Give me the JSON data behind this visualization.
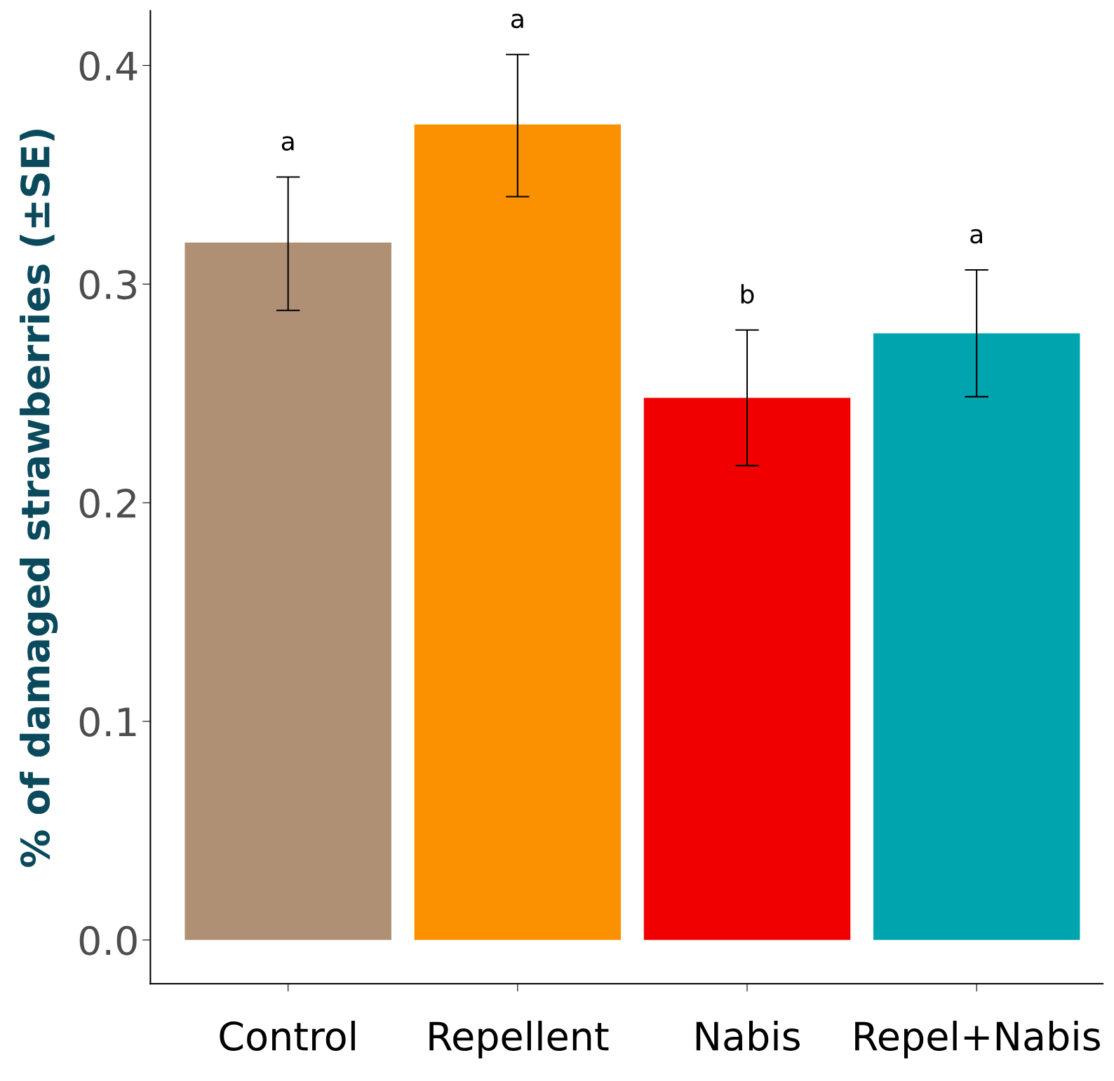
{
  "chart_data": {
    "type": "bar",
    "ylabel": "% of damaged strawberries (±SE)",
    "categories": [
      "Control",
      "Repellent",
      "Nabis",
      "Repel+Nabis"
    ],
    "values": [
      0.319,
      0.373,
      0.248,
      0.2775
    ],
    "colors": [
      "#af9074",
      "#fb9100",
      "#f00000",
      "#00a4ae"
    ],
    "errors": [
      [
        0.288,
        0.349
      ],
      [
        0.34,
        0.405
      ],
      [
        0.217,
        0.279
      ],
      [
        0.2485,
        0.3065
      ]
    ],
    "ylim": [
      -0.02,
      0.425
    ],
    "yticks": [
      {
        "value": 0,
        "label": "0.0"
      },
      0.1,
      0.2,
      0.3,
      0.4
    ],
    "grid": false,
    "annotations": [
      "a",
      "a",
      "b",
      "a"
    ]
  }
}
